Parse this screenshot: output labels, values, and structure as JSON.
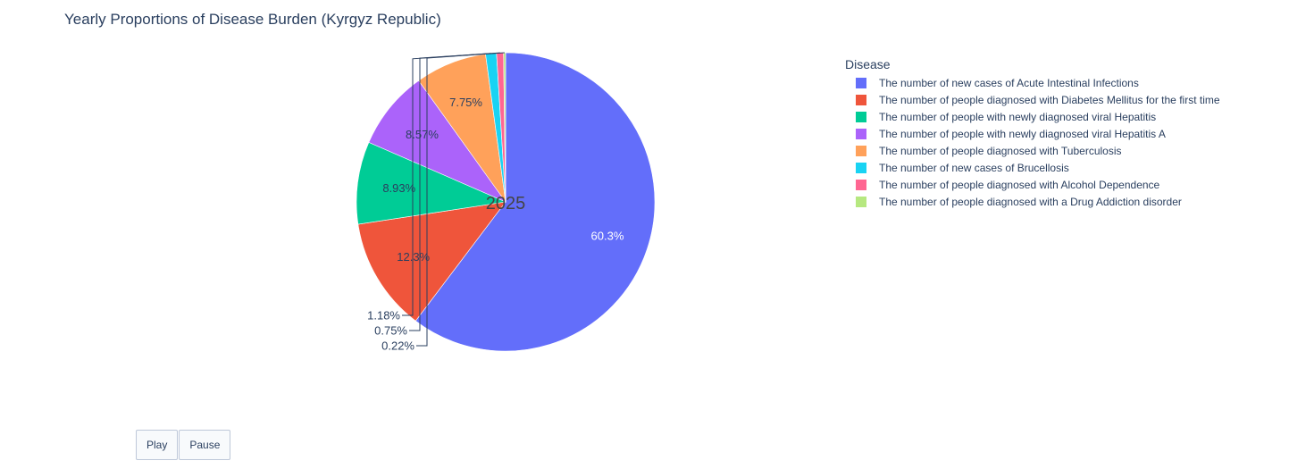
{
  "chart_data": {
    "type": "pie",
    "title": "Yearly Proportions of Disease Burden (Kyrgyz Republic)",
    "center_label": "2025",
    "legend_title": "Disease",
    "legend_position": "right",
    "slices": [
      {
        "label": "The number of new cases of Acute Intestinal Infections",
        "value": 60.3,
        "text": "60.3%",
        "color": "#636efa"
      },
      {
        "label": "The number of people diagnosed with Diabetes Mellitus for the first time",
        "value": 12.3,
        "text": "12.3%",
        "color": "#ef553b"
      },
      {
        "label": "The number of people with newly diagnosed viral Hepatitis",
        "value": 8.93,
        "text": "8.93%",
        "color": "#00cc96"
      },
      {
        "label": "The number of people with newly diagnosed viral Hepatitis A",
        "value": 8.57,
        "text": "8.57%",
        "color": "#ab63fa"
      },
      {
        "label": "The number of people diagnosed with Tuberculosis",
        "value": 7.75,
        "text": "7.75%",
        "color": "#ffa15a"
      },
      {
        "label": "The number of new cases of Brucellosis",
        "value": 1.18,
        "text": "1.18%",
        "color": "#19d3f3"
      },
      {
        "label": "The number of people diagnosed with Alcohol Dependence",
        "value": 0.75,
        "text": "0.75%",
        "color": "#ff6692"
      },
      {
        "label": "The number of people diagnosed with a Drug Addiction disorder",
        "value": 0.22,
        "text": "0.22%",
        "color": "#b6e880"
      }
    ]
  },
  "controls": {
    "play_label": "Play",
    "pause_label": "Pause"
  }
}
